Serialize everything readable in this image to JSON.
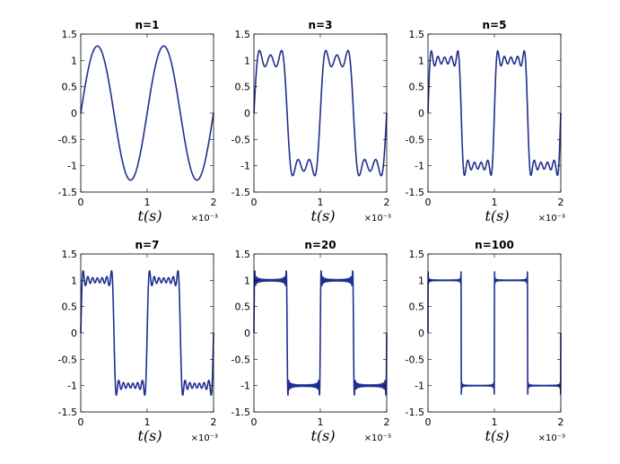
{
  "colors": {
    "line": "#1f2f8f",
    "axes": "#000000",
    "background": "#ffffff"
  },
  "chart_data": [
    {
      "type": "line",
      "title": "n=1",
      "harmonics": 1,
      "period_x1e3": 1,
      "xlabel": "t(s)",
      "x_multiplier": "×10⁻³",
      "xlim": [
        0,
        2
      ],
      "ylim": [
        -1.5,
        1.5
      ],
      "xticks": [
        0,
        1,
        2
      ],
      "yticks": [
        -1.5,
        -1,
        -0.5,
        0,
        0.5,
        1,
        1.5
      ],
      "xticklabels": [
        "0",
        "1",
        "2"
      ],
      "yticklabels": [
        "-1.5",
        "-1",
        "-0.5",
        "0",
        "0.5",
        "1",
        "1.5"
      ],
      "grid": false
    },
    {
      "type": "line",
      "title": "n=3",
      "harmonics": 3,
      "period_x1e3": 1,
      "xlabel": "t(s)",
      "x_multiplier": "×10⁻³",
      "xlim": [
        0,
        2
      ],
      "ylim": [
        -1.5,
        1.5
      ],
      "xticks": [
        0,
        1,
        2
      ],
      "yticks": [
        -1.5,
        -1,
        -0.5,
        0,
        0.5,
        1,
        1.5
      ],
      "xticklabels": [
        "0",
        "1",
        "2"
      ],
      "yticklabels": [
        "-1.5",
        "-1",
        "-0.5",
        "0",
        "0.5",
        "1",
        "1.5"
      ],
      "grid": false
    },
    {
      "type": "line",
      "title": "n=5",
      "harmonics": 5,
      "period_x1e3": 1,
      "xlabel": "t(s)",
      "x_multiplier": "×10⁻³",
      "xlim": [
        0,
        2
      ],
      "ylim": [
        -1.5,
        1.5
      ],
      "xticks": [
        0,
        1,
        2
      ],
      "yticks": [
        -1.5,
        -1,
        -0.5,
        0,
        0.5,
        1,
        1.5
      ],
      "xticklabels": [
        "0",
        "1",
        "2"
      ],
      "yticklabels": [
        "-1.5",
        "-1",
        "-0.5",
        "0",
        "0.5",
        "1",
        "1.5"
      ],
      "grid": false
    },
    {
      "type": "line",
      "title": "n=7",
      "harmonics": 7,
      "period_x1e3": 1,
      "xlabel": "t(s)",
      "x_multiplier": "×10⁻³",
      "xlim": [
        0,
        2
      ],
      "ylim": [
        -1.5,
        1.5
      ],
      "xticks": [
        0,
        1,
        2
      ],
      "yticks": [
        -1.5,
        -1,
        -0.5,
        0,
        0.5,
        1,
        1.5
      ],
      "xticklabels": [
        "0",
        "1",
        "2"
      ],
      "yticklabels": [
        "-1.5",
        "-1",
        "-0.5",
        "0",
        "0.5",
        "1",
        "1.5"
      ],
      "grid": false
    },
    {
      "type": "line",
      "title": "n=20",
      "harmonics": 20,
      "period_x1e3": 1,
      "xlabel": "t(s)",
      "x_multiplier": "×10⁻³",
      "xlim": [
        0,
        2
      ],
      "ylim": [
        -1.5,
        1.5
      ],
      "xticks": [
        0,
        1,
        2
      ],
      "yticks": [
        -1.5,
        -1,
        -0.5,
        0,
        0.5,
        1,
        1.5
      ],
      "xticklabels": [
        "0",
        "1",
        "2"
      ],
      "yticklabels": [
        "-1.5",
        "-1",
        "-0.5",
        "0",
        "0.5",
        "1",
        "1.5"
      ],
      "grid": false
    },
    {
      "type": "line",
      "title": "n=100",
      "harmonics": 100,
      "period_x1e3": 1,
      "xlabel": "t(s)",
      "x_multiplier": "×10⁻³",
      "xlim": [
        0,
        2
      ],
      "ylim": [
        -1.5,
        1.5
      ],
      "xticks": [
        0,
        1,
        2
      ],
      "yticks": [
        -1.5,
        -1,
        -0.5,
        0,
        0.5,
        1,
        1.5
      ],
      "xticklabels": [
        "0",
        "1",
        "2"
      ],
      "yticklabels": [
        "-1.5",
        "-1",
        "-0.5",
        "0",
        "0.5",
        "1",
        "1.5"
      ],
      "grid": false
    }
  ]
}
